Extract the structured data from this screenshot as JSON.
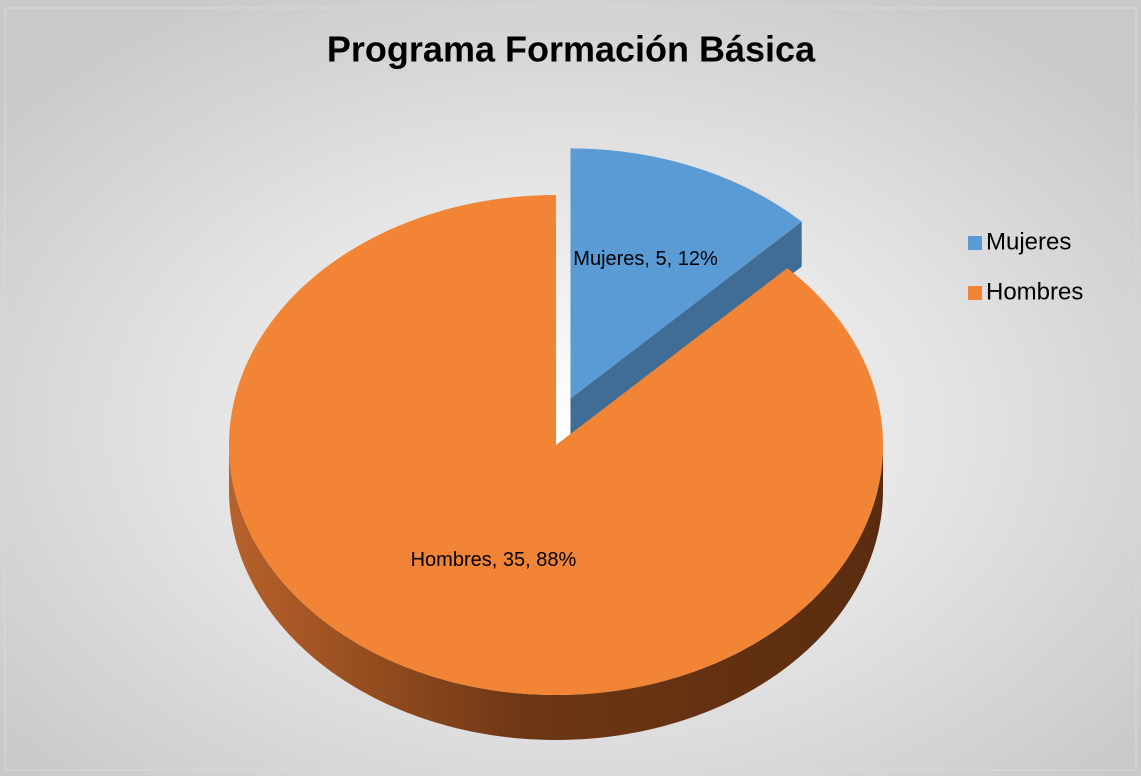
{
  "chart_data": {
    "type": "pie",
    "title": "Programa Formación Básica",
    "categories": [
      "Mujeres",
      "Hombres"
    ],
    "values": [
      5,
      35
    ],
    "value_labels": [
      "Mujeres, 5, 12%",
      "Hombres, 35, 88%"
    ],
    "colors": [
      "#5b9bd5",
      "#f28436"
    ],
    "legend": "right"
  }
}
